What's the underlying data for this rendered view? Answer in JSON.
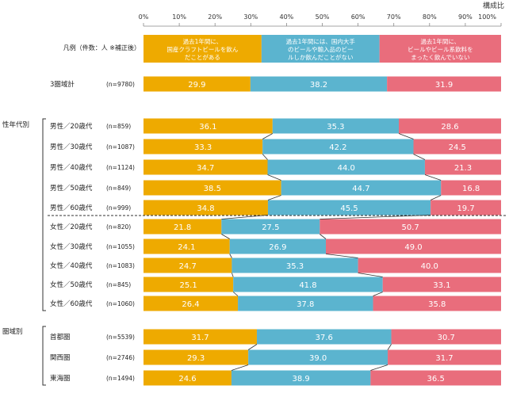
{
  "chart_data": {
    "type": "bar",
    "orientation": "horizontal",
    "stacked": true,
    "unit_label": "構成比",
    "xticks": [
      "0%",
      "10%",
      "20%",
      "30%",
      "40%",
      "50%",
      "60%",
      "70%",
      "80%",
      "90%",
      "100%"
    ],
    "xlim": [
      0,
      100
    ],
    "grid": false,
    "legend": {
      "heading": "凡例（件数：人 ※補正後）",
      "entries": [
        [
          "過去1年間に、",
          "国産クラフトビールを飲ん",
          "だことがある"
        ],
        [
          "過去1年間には、国内大手",
          "のビールや輸入品のビー",
          "ルしか飲んだことがない"
        ],
        [
          "過去1年間に、",
          "ビールやビール系飲料を",
          "まったく飲んでいない"
        ]
      ],
      "placement": "top"
    },
    "colors": [
      "#EEAA00",
      "#5BB4CF",
      "#E96D7C"
    ],
    "groups": [
      {
        "label": "",
        "rows": [
          {
            "label": "3圏域計",
            "n": "(n=9780)",
            "values": [
              29.9,
              38.2,
              31.9
            ]
          }
        ]
      },
      {
        "label": "性年代別",
        "rows": [
          {
            "label": "男性／20歳代",
            "n": "(n=859)",
            "values": [
              36.1,
              35.3,
              28.6
            ]
          },
          {
            "label": "男性／30歳代",
            "n": "(n=1087)",
            "values": [
              33.3,
              42.2,
              24.5
            ]
          },
          {
            "label": "男性／40歳代",
            "n": "(n=1124)",
            "values": [
              34.7,
              44.0,
              21.3
            ]
          },
          {
            "label": "男性／50歳代",
            "n": "(n=849)",
            "values": [
              38.5,
              44.7,
              16.8
            ]
          },
          {
            "label": "男性／60歳代",
            "n": "(n=999)",
            "values": [
              34.8,
              45.5,
              19.7
            ]
          },
          {
            "label": "女性／20歳代",
            "n": "(n=820)",
            "values": [
              21.8,
              27.5,
              50.7
            ]
          },
          {
            "label": "女性／30歳代",
            "n": "(n=1055)",
            "values": [
              24.1,
              26.9,
              49.0
            ]
          },
          {
            "label": "女性／40歳代",
            "n": "(n=1083)",
            "values": [
              24.7,
              35.3,
              40.0
            ]
          },
          {
            "label": "女性／50歳代",
            "n": "(n=845)",
            "values": [
              25.1,
              41.8,
              33.1
            ]
          },
          {
            "label": "女性／60歳代",
            "n": "(n=1060)",
            "values": [
              26.4,
              37.8,
              35.8
            ]
          }
        ]
      },
      {
        "label": "圏域別",
        "rows": [
          {
            "label": "首都圏",
            "n": "(n=5539)",
            "values": [
              31.7,
              37.6,
              30.7
            ]
          },
          {
            "label": "関西圏",
            "n": "(n=2746)",
            "values": [
              29.3,
              39.0,
              31.7
            ]
          },
          {
            "label": "東海圏",
            "n": "(n=1494)",
            "values": [
              24.6,
              38.9,
              36.5
            ]
          }
        ]
      }
    ]
  }
}
